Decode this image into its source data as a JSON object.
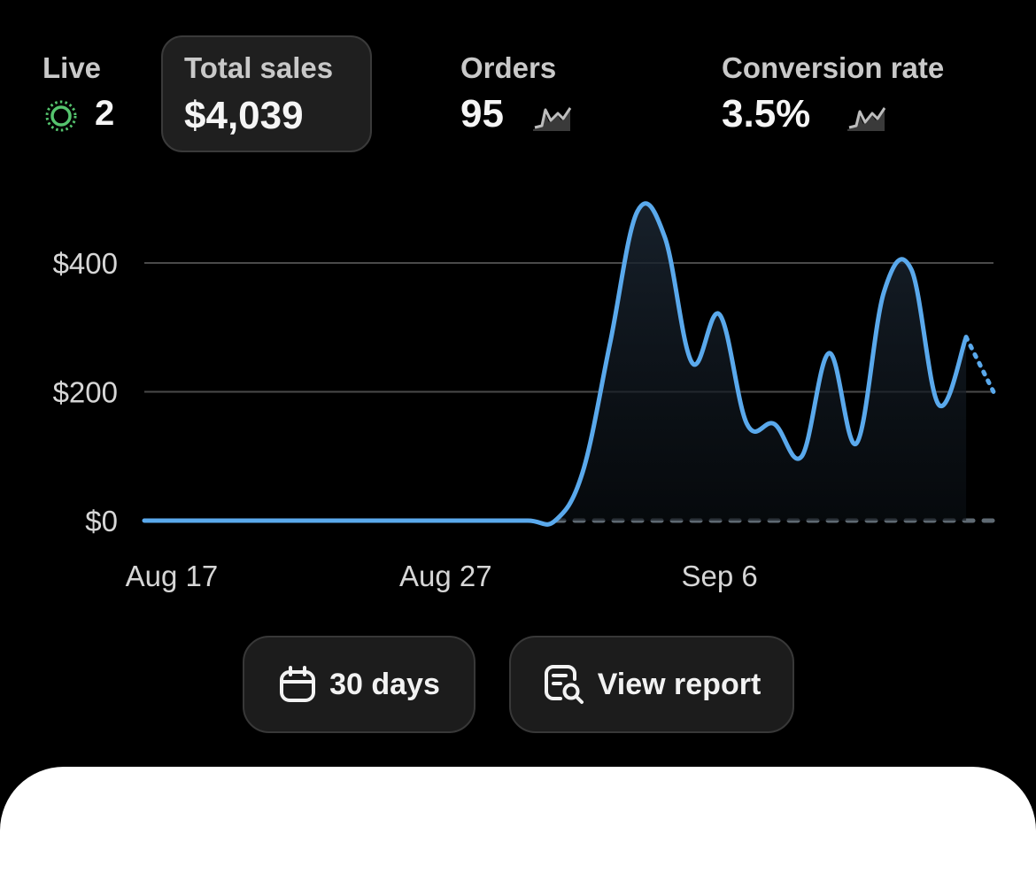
{
  "colors": {
    "background": "#000000",
    "accent_line": "#5aa9ec",
    "live_green": "#55c46e",
    "card_bg": "#1f1f1f"
  },
  "stats": {
    "live": {
      "label": "Live",
      "value": "2",
      "icon": "live-pulse-icon"
    },
    "total_sales": {
      "label": "Total sales",
      "value": "$4,039"
    },
    "orders": {
      "label": "Orders",
      "value": "95",
      "icon": "sparkline-icon"
    },
    "conversion": {
      "label": "Conversion rate",
      "value": "3.5%",
      "icon": "sparkline-icon"
    }
  },
  "chart_data": {
    "type": "line",
    "y_ticks": [
      "$400",
      "$200",
      "$0"
    ],
    "y_values": [
      400,
      200,
      0
    ],
    "ylim": [
      0,
      400
    ],
    "x_ticks": [
      "Aug 17",
      "Aug 27",
      "Sep 6"
    ],
    "x_range": [
      "Aug 16",
      "Sep 16"
    ],
    "grid": true,
    "series": [
      {
        "points": [
          [
            "Aug 16",
            0
          ],
          [
            "Aug 18",
            0
          ],
          [
            "Aug 20",
            0
          ],
          [
            "Aug 22",
            0
          ],
          [
            "Aug 24",
            0
          ],
          [
            "Aug 26",
            0
          ],
          [
            "Aug 28",
            0
          ],
          [
            "Aug 30",
            0
          ],
          [
            "Aug 31",
            0
          ],
          [
            "Sep 1",
            75
          ],
          [
            "Sep 2",
            275
          ],
          [
            "Sep 3",
            480
          ],
          [
            "Sep 4",
            440
          ],
          [
            "Sep 5",
            245
          ],
          [
            "Sep 6",
            320
          ],
          [
            "Sep 7",
            150
          ],
          [
            "Sep 8",
            150
          ],
          [
            "Sep 9",
            100
          ],
          [
            "Sep 10",
            260
          ],
          [
            "Sep 11",
            120
          ],
          [
            "Sep 12",
            355
          ],
          [
            "Sep 13",
            390
          ],
          [
            "Sep 14",
            180
          ],
          [
            "Sep 15",
            285
          ]
        ],
        "projected": [
          [
            "Sep 15",
            285
          ],
          [
            "Sep 16",
            200
          ]
        ]
      }
    ],
    "comparison_series": [
      {
        "points": [
          [
            "Aug 31",
            0
          ],
          [
            "Sep 16",
            0
          ]
        ],
        "style": "dashed"
      }
    ]
  },
  "actions": {
    "range_button": {
      "label": "30 days",
      "icon": "calendar-icon"
    },
    "report_button": {
      "label": "View report",
      "icon": "report-search-icon"
    }
  }
}
